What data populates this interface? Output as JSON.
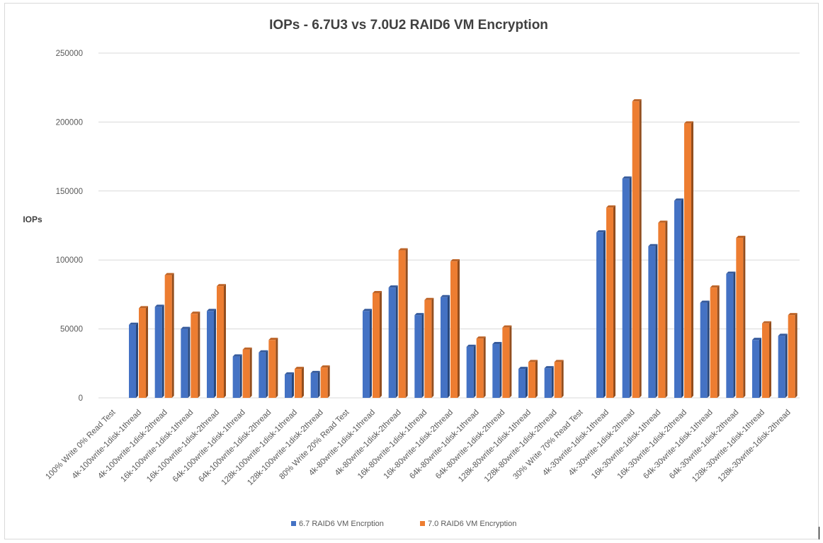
{
  "chart_data": {
    "type": "bar",
    "title": "IOPs - 6.7U3 vs 7.0U2 RAID6 VM Encryption",
    "xlabel": "",
    "ylabel": "IOPs",
    "ylim": [
      0,
      250000
    ],
    "yticks": [
      0,
      50000,
      100000,
      150000,
      200000,
      250000
    ],
    "grid": true,
    "legend_position": "bottom",
    "categories": [
      "100% Write 0% Read Test",
      "4k-100write-1disk-1thread",
      "4k-100write-1disk-2thread",
      "16k-100write-1disk-1thread",
      "16k-100write-1disk-2thread",
      "64k-100write-1disk-1thread",
      "64k-100write-1disk-2thread",
      "128k-100write-1disk-1thread",
      "128k-100write-1disk-2thread",
      "80% Write 20% Read Test",
      "4k-80write-1disk-1thread",
      "4k-80write-1disk-2thread",
      "16k-80write-1disk-1thread",
      "16k-80write-1disk-2thread",
      "64k-80write-1disk-1thread",
      "64k-80write-1disk-2thread",
      "128k-80write-1disk-1thread",
      "128k-80write-1disk-2thread",
      "30% Write 70% Read Test",
      "4k-30write-1disk-1thread",
      "4k-30write-1disk-2thread",
      "16k-30write-1disk-1thread",
      "16k-30write-1disk-2thread",
      "64k-30write-1disk-1thread",
      "64k-30write-1disk-2thread",
      "128k-30write-1disk-1thread",
      "128k-30write-1disk-2thread"
    ],
    "series": [
      {
        "name": "6.7 RAID6 VM Encrption",
        "color": "#4472C4",
        "values": [
          null,
          53000,
          66000,
          50000,
          63000,
          30000,
          33000,
          17000,
          18000,
          null,
          63000,
          80000,
          60000,
          73000,
          37000,
          39000,
          21000,
          21500,
          null,
          120000,
          159000,
          110000,
          143000,
          69000,
          90000,
          42000,
          45000
        ]
      },
      {
        "name": "7.0 RAID6 VM Encryption",
        "color": "#ED7D31",
        "values": [
          null,
          65000,
          89000,
          61000,
          81000,
          35000,
          42000,
          21000,
          22000,
          null,
          76000,
          107000,
          71000,
          99000,
          43000,
          51000,
          26000,
          26000,
          null,
          138000,
          215000,
          127000,
          199000,
          80000,
          116000,
          54000,
          60000
        ]
      }
    ]
  }
}
